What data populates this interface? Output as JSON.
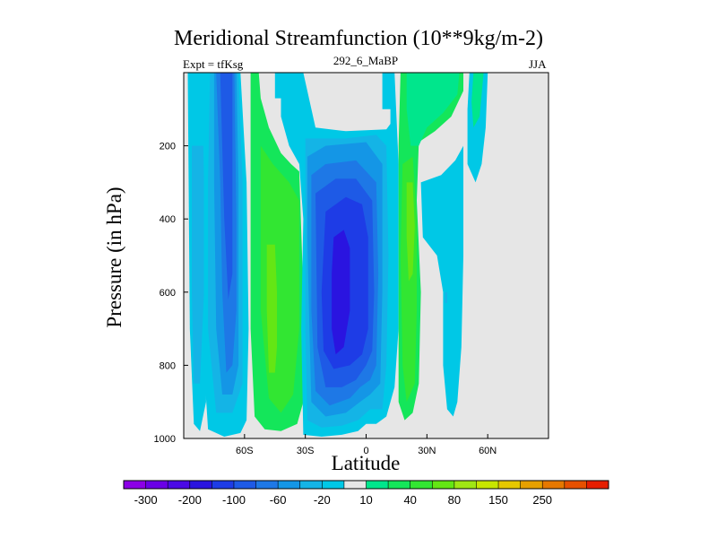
{
  "chart_data": {
    "type": "heatmap",
    "title": "Meridional Streamfunction (10**9kg/m-2)",
    "subtitle_left": "Expt = tfKsg",
    "subtitle_center": "292_6_MaBP",
    "subtitle_right": "JJA",
    "xlabel": "Latitude",
    "ylabel": "Pressure (in hPa)",
    "xlim": [
      -90,
      90
    ],
    "ylim": [
      1000,
      0
    ],
    "x_ticks": [
      {
        "value": -60,
        "label": "60S"
      },
      {
        "value": -30,
        "label": "30S"
      },
      {
        "value": 0,
        "label": "0"
      },
      {
        "value": 30,
        "label": "30N"
      },
      {
        "value": 60,
        "label": "60N"
      }
    ],
    "y_ticks": [
      {
        "value": 200,
        "label": "200"
      },
      {
        "value": 400,
        "label": "400"
      },
      {
        "value": 600,
        "label": "600"
      },
      {
        "value": 800,
        "label": "800"
      },
      {
        "value": 1000,
        "label": "1000"
      }
    ],
    "colorbar": {
      "colors": [
        "#8c00e6",
        "#6a00e6",
        "#4b0ae6",
        "#2a14e0",
        "#1e3ce6",
        "#1e5ae6",
        "#1e78e6",
        "#1496e6",
        "#14b4e6",
        "#00c8e6",
        "#e6e6e6",
        "#00e68c",
        "#14e65a",
        "#32e632",
        "#64e614",
        "#a0e614",
        "#c8e600",
        "#e6c800",
        "#e6a000",
        "#e67800",
        "#e65000",
        "#e61e00"
      ],
      "labels": [
        {
          "boundary": 1,
          "text": "-300"
        },
        {
          "boundary": 3,
          "text": "-200"
        },
        {
          "boundary": 5,
          "text": "-100"
        },
        {
          "boundary": 7,
          "text": "-60"
        },
        {
          "boundary": 9,
          "text": "-20"
        },
        {
          "boundary": 11,
          "text": "10"
        },
        {
          "boundary": 13,
          "text": "40"
        },
        {
          "boundary": 15,
          "text": "80"
        },
        {
          "boundary": 17,
          "text": "150"
        },
        {
          "boundary": 19,
          "text": "250"
        }
      ]
    },
    "cells": [
      {
        "name": "sh-polar-cell",
        "polygon": [
          [
            -88,
            0
          ],
          [
            -78,
            0
          ],
          [
            -78,
            350
          ],
          [
            -79,
            900
          ],
          [
            -82,
            980
          ],
          [
            -85,
            960
          ],
          [
            -87,
            700
          ]
        ],
        "level": 9
      },
      {
        "name": "sh-polar-cell-inner",
        "polygon": [
          [
            -86,
            200
          ],
          [
            -80,
            200
          ],
          [
            -80,
            600
          ],
          [
            -82,
            850
          ],
          [
            -85,
            850
          ],
          [
            -86,
            600
          ]
        ],
        "level": 8
      },
      {
        "name": "sh-ferrel-cell-south",
        "polygon": [
          [
            -81,
            0
          ],
          [
            -62,
            0
          ],
          [
            -59,
            300
          ],
          [
            -58,
            700
          ],
          [
            -59,
            950
          ],
          [
            -62,
            985
          ],
          [
            -70,
            995
          ],
          [
            -78,
            975
          ],
          [
            -80,
            800
          ],
          [
            -80,
            300
          ]
        ],
        "level": 9
      },
      {
        "name": "sh-ferrel-cell-south",
        "polygon": [
          [
            -77,
            0
          ],
          [
            -63,
            0
          ],
          [
            -61,
            300
          ],
          [
            -61,
            850
          ],
          [
            -66,
            930
          ],
          [
            -74,
            930
          ],
          [
            -78,
            700
          ],
          [
            -78,
            300
          ]
        ],
        "level": 8
      },
      {
        "name": "sh-ferrel-cell-south",
        "polygon": [
          [
            -75,
            0
          ],
          [
            -64,
            0
          ],
          [
            -63,
            300
          ],
          [
            -63,
            800
          ],
          [
            -66,
            880
          ],
          [
            -71,
            880
          ],
          [
            -74,
            700
          ],
          [
            -75,
            300
          ]
        ],
        "level": 7
      },
      {
        "name": "sh-ferrel-cell-south",
        "polygon": [
          [
            -74,
            0
          ],
          [
            -65,
            0
          ],
          [
            -64,
            400
          ],
          [
            -64,
            650
          ],
          [
            -66,
            800
          ],
          [
            -69,
            820
          ],
          [
            -71,
            600
          ],
          [
            -72,
            300
          ]
        ],
        "level": 6
      },
      {
        "name": "sh-ferrel-cell-south",
        "polygon": [
          [
            -72,
            0
          ],
          [
            -66,
            0
          ],
          [
            -66,
            300
          ],
          [
            -66,
            550
          ],
          [
            -68,
            620
          ],
          [
            -70,
            400
          ]
        ],
        "level": 5
      },
      {
        "name": "sh-thermal-cell",
        "polygon": [
          [
            -57,
            0
          ],
          [
            -53,
            0
          ],
          [
            -52,
            70
          ],
          [
            -48,
            150
          ],
          [
            -42,
            220
          ],
          [
            -37,
            250
          ],
          [
            -33,
            270
          ],
          [
            -31,
            600
          ],
          [
            -31,
            900
          ],
          [
            -34,
            960
          ],
          [
            -42,
            980
          ],
          [
            -50,
            975
          ],
          [
            -55,
            940
          ],
          [
            -57,
            700
          ],
          [
            -57,
            200
          ]
        ],
        "level": 12
      },
      {
        "name": "sh-thermal-cell",
        "polygon": [
          [
            -52,
            200
          ],
          [
            -46,
            250
          ],
          [
            -38,
            300
          ],
          [
            -33,
            350
          ],
          [
            -33,
            700
          ],
          [
            -36,
            880
          ],
          [
            -42,
            930
          ],
          [
            -48,
            890
          ],
          [
            -52,
            650
          ]
        ],
        "level": 13
      },
      {
        "name": "sh-thermal-cell",
        "polygon": [
          [
            -49,
            470
          ],
          [
            -45,
            470
          ],
          [
            -44,
            600
          ],
          [
            -44,
            750
          ],
          [
            -45,
            820
          ],
          [
            -48,
            820
          ],
          [
            -49,
            650
          ]
        ],
        "level": 14
      },
      {
        "name": "hadley-cell",
        "polygon": [
          [
            -42,
            0
          ],
          [
            -31,
            0
          ],
          [
            -25,
            150
          ],
          [
            -10,
            160
          ],
          [
            10,
            155
          ],
          [
            12,
            140
          ],
          [
            12,
            100
          ],
          [
            9,
            30
          ],
          [
            10,
            0
          ],
          [
            14,
            0
          ],
          [
            16,
            250
          ],
          [
            16,
            700
          ],
          [
            14,
            860
          ],
          [
            10,
            940
          ],
          [
            5,
            960
          ],
          [
            0,
            960
          ],
          [
            -4,
            980
          ],
          [
            -12,
            990
          ],
          [
            -22,
            995
          ],
          [
            -31,
            990
          ],
          [
            -32,
            700
          ],
          [
            -31,
            400
          ],
          [
            -33,
            250
          ],
          [
            -38,
            200
          ],
          [
            -42,
            120
          ]
        ],
        "level": 9
      },
      {
        "name": "hadley-cell",
        "polygon": [
          [
            -30,
            180
          ],
          [
            -10,
            180
          ],
          [
            5,
            170
          ],
          [
            10,
            200
          ],
          [
            11,
            500
          ],
          [
            10,
            800
          ],
          [
            8,
            920
          ],
          [
            2,
            920
          ],
          [
            -4,
            950
          ],
          [
            -12,
            965
          ],
          [
            -22,
            970
          ],
          [
            -29,
            950
          ],
          [
            -30,
            700
          ]
        ],
        "level": 8
      },
      {
        "name": "hadley-cell",
        "polygon": [
          [
            -29,
            230
          ],
          [
            -20,
            200
          ],
          [
            0,
            190
          ],
          [
            8,
            250
          ],
          [
            8,
            600
          ],
          [
            7,
            850
          ],
          [
            2,
            880
          ],
          [
            -3,
            900
          ],
          [
            -10,
            930
          ],
          [
            -20,
            940
          ],
          [
            -27,
            900
          ],
          [
            -28,
            700
          ],
          [
            -29,
            450
          ]
        ],
        "level": 7
      },
      {
        "name": "hadley-cell",
        "polygon": [
          [
            -27,
            280
          ],
          [
            -20,
            250
          ],
          [
            -5,
            240
          ],
          [
            5,
            300
          ],
          [
            6,
            550
          ],
          [
            5,
            800
          ],
          [
            2,
            840
          ],
          [
            -3,
            860
          ],
          [
            -8,
            890
          ],
          [
            -18,
            910
          ],
          [
            -25,
            870
          ],
          [
            -27,
            650
          ]
        ],
        "level": 6
      },
      {
        "name": "hadley-cell",
        "polygon": [
          [
            -25,
            330
          ],
          [
            -15,
            290
          ],
          [
            -5,
            290
          ],
          [
            3,
            350
          ],
          [
            4,
            600
          ],
          [
            3,
            760
          ],
          [
            0,
            800
          ],
          [
            -5,
            840
          ],
          [
            -12,
            860
          ],
          [
            -20,
            860
          ],
          [
            -24,
            750
          ]
        ],
        "level": 5
      },
      {
        "name": "hadley-cell",
        "polygon": [
          [
            -20,
            380
          ],
          [
            -10,
            340
          ],
          [
            -2,
            360
          ],
          [
            1,
            450
          ],
          [
            1,
            700
          ],
          [
            -2,
            770
          ],
          [
            -8,
            800
          ],
          [
            -16,
            810
          ],
          [
            -21,
            760
          ],
          [
            -22,
            600
          ]
        ],
        "level": 4
      },
      {
        "name": "hadley-cell",
        "polygon": [
          [
            -16,
            450
          ],
          [
            -11,
            430
          ],
          [
            -8,
            480
          ],
          [
            -8,
            650
          ],
          [
            -11,
            750
          ],
          [
            -15,
            770
          ],
          [
            -17,
            700
          ],
          [
            -17,
            550
          ]
        ],
        "level": 3
      },
      {
        "name": "nh-upper-blue",
        "polygon": [
          [
            -45,
            0
          ],
          [
            -42,
            0
          ],
          [
            -42,
            70
          ],
          [
            -45,
            70
          ]
        ],
        "level": 9
      },
      {
        "name": "nh-upper-blue",
        "polygon": [
          [
            8,
            0
          ],
          [
            13,
            0
          ],
          [
            13,
            100
          ],
          [
            8,
            100
          ]
        ],
        "level": 9
      },
      {
        "name": "nh-ferrel-thermal-cell",
        "polygon": [
          [
            17,
            0
          ],
          [
            48,
            0
          ],
          [
            48,
            50
          ],
          [
            42,
            120
          ],
          [
            34,
            160
          ],
          [
            26,
            190
          ],
          [
            25,
            350
          ],
          [
            27,
            600
          ],
          [
            26,
            850
          ],
          [
            23,
            930
          ],
          [
            19,
            950
          ],
          [
            16,
            900
          ],
          [
            16,
            500
          ],
          [
            16,
            200
          ]
        ],
        "level": 12
      },
      {
        "name": "nh-ferrel-thermal-cell",
        "polygon": [
          [
            20,
            0
          ],
          [
            46,
            0
          ],
          [
            45,
            60
          ],
          [
            38,
            110
          ],
          [
            30,
            150
          ],
          [
            26,
            200
          ],
          [
            22,
            200
          ],
          [
            20,
            100
          ]
        ],
        "level": 11
      },
      {
        "name": "nh-ferrel-thermal-cell",
        "polygon": [
          [
            18,
            250
          ],
          [
            23,
            230
          ],
          [
            25,
            400
          ],
          [
            25,
            650
          ],
          [
            24,
            850
          ],
          [
            20,
            900
          ],
          [
            18,
            800
          ],
          [
            17,
            500
          ]
        ],
        "level": 13
      },
      {
        "name": "nh-ferrel-thermal-cell",
        "polygon": [
          [
            20,
            300
          ],
          [
            23,
            300
          ],
          [
            24,
            420
          ],
          [
            23,
            550
          ],
          [
            21,
            570
          ],
          [
            20,
            450
          ]
        ],
        "level": 14
      },
      {
        "name": "nh-subpolar-cell",
        "polygon": [
          [
            27,
            300
          ],
          [
            37,
            280
          ],
          [
            44,
            240
          ],
          [
            48,
            200
          ],
          [
            48,
            500
          ],
          [
            47,
            750
          ],
          [
            45,
            900
          ],
          [
            43,
            940
          ],
          [
            40,
            920
          ],
          [
            38,
            800
          ],
          [
            38,
            600
          ],
          [
            35,
            500
          ],
          [
            28,
            450
          ]
        ],
        "level": 9
      },
      {
        "name": "nh-subpolar-cell",
        "polygon": [
          [
            39,
            600
          ],
          [
            40,
            600
          ],
          [
            40,
            630
          ],
          [
            39,
            630
          ]
        ],
        "level": 8
      },
      {
        "name": "nh-subpolar-cell",
        "polygon": [
          [
            51,
            0
          ],
          [
            60,
            0
          ],
          [
            59,
            150
          ],
          [
            57,
            250
          ],
          [
            54,
            300
          ],
          [
            50,
            250
          ],
          [
            50,
            100
          ]
        ],
        "level": 9
      },
      {
        "name": "nh-subpolar-cell",
        "polygon": [
          [
            53,
            0
          ],
          [
            58,
            0
          ],
          [
            56,
            120
          ],
          [
            53,
            150
          ],
          [
            52,
            80
          ]
        ],
        "level": 11
      }
    ]
  }
}
